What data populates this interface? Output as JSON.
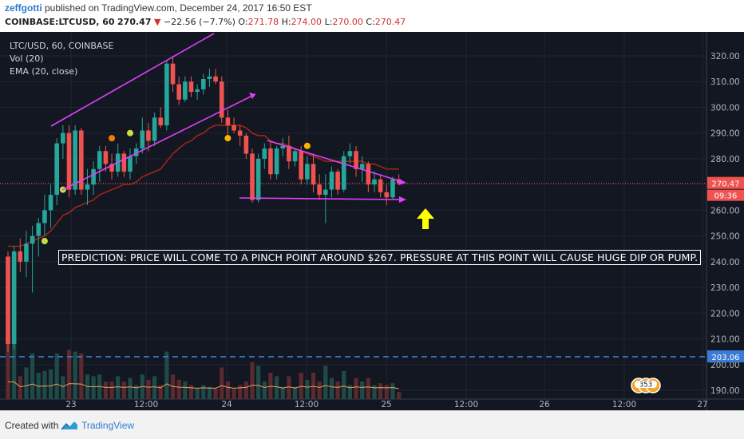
{
  "header": {
    "author": "zeffgotti",
    "published_text": " published on TradingView.com, December 24, 2017 16:50 EST",
    "symbol": "COINBASE:LTCUSD, 60",
    "last": "270.47",
    "change": "−22.56 (−7.7%)",
    "o_label": "O:",
    "o_val": "271.78",
    "h_label": "H:",
    "h_val": "274.00",
    "l_label": "L:",
    "l_val": "270.00",
    "c_label": "C:",
    "c_val": "270.47"
  },
  "legend": {
    "line1": "LTC/USD, 60, COINBASE",
    "line2": "Vol (20)",
    "line3": "EMA (20, close)"
  },
  "annotation": {
    "prediction": "PREDICTION: PRICE WILL COME TO A PINCH POINT AROUND $267. PRESSURE AT THIS POINT WILL CAUSE HUGE DIP OR PUMP."
  },
  "footer": {
    "created_with": "Created with",
    "brand": "TradingView"
  },
  "badge": {
    "count": "353"
  },
  "colors": {
    "background": "#131722",
    "up": "#26a69a",
    "down": "#ef5350",
    "ema": "#a52714",
    "drawing": "#e040fb",
    "marker": "#c6e03d",
    "arrow": "#ffff00",
    "hline": "#3a7bd5"
  },
  "chart_data": {
    "type": "candlestick",
    "symbol": "LTC/USD",
    "interval": "60",
    "exchange": "COINBASE",
    "y_ticks": [
      190,
      200,
      210,
      220,
      230,
      240,
      250,
      260,
      270,
      280,
      290,
      300,
      310,
      320
    ],
    "y_tick_labels": [
      "190.00",
      "200.00",
      "210.00",
      "220.00",
      "230.00",
      "240.00",
      "250.00",
      "260.00",
      "270.00",
      "280.00",
      "290.00",
      "300.00",
      "310.00",
      "320.00"
    ],
    "ylim": [
      187,
      327
    ],
    "x_tick_labels": [
      "23",
      "12:00",
      "24",
      "12:00",
      "25",
      "12:00",
      "26",
      "12:00",
      "27"
    ],
    "candles": [
      {
        "o": 242,
        "h": 244,
        "l": 205,
        "c": 208
      },
      {
        "o": 208,
        "h": 246,
        "l": 206,
        "c": 244
      },
      {
        "o": 244,
        "h": 249,
        "l": 236,
        "c": 240
      },
      {
        "o": 240,
        "h": 252,
        "l": 234,
        "c": 247
      },
      {
        "o": 247,
        "h": 254,
        "l": 228,
        "c": 250
      },
      {
        "o": 250,
        "h": 257,
        "l": 242,
        "c": 255
      },
      {
        "o": 255,
        "h": 266,
        "l": 250,
        "c": 260
      },
      {
        "o": 260,
        "h": 270,
        "l": 253,
        "c": 266
      },
      {
        "o": 266,
        "h": 288,
        "l": 262,
        "c": 286
      },
      {
        "o": 286,
        "h": 293,
        "l": 280,
        "c": 290
      },
      {
        "o": 290,
        "h": 293,
        "l": 265,
        "c": 268
      },
      {
        "o": 268,
        "h": 293,
        "l": 266,
        "c": 291
      },
      {
        "o": 291,
        "h": 292,
        "l": 266,
        "c": 268
      },
      {
        "o": 268,
        "h": 276,
        "l": 262,
        "c": 270
      },
      {
        "o": 270,
        "h": 279,
        "l": 266,
        "c": 276
      },
      {
        "o": 276,
        "h": 285,
        "l": 271,
        "c": 283
      },
      {
        "o": 283,
        "h": 285,
        "l": 275,
        "c": 278
      },
      {
        "o": 278,
        "h": 282,
        "l": 272,
        "c": 275
      },
      {
        "o": 275,
        "h": 286,
        "l": 273,
        "c": 282
      },
      {
        "o": 282,
        "h": 283,
        "l": 273,
        "c": 275
      },
      {
        "o": 275,
        "h": 284,
        "l": 272,
        "c": 281
      },
      {
        "o": 281,
        "h": 286,
        "l": 278,
        "c": 284
      },
      {
        "o": 284,
        "h": 296,
        "l": 282,
        "c": 291
      },
      {
        "o": 291,
        "h": 294,
        "l": 283,
        "c": 287
      },
      {
        "o": 287,
        "h": 298,
        "l": 285,
        "c": 296
      },
      {
        "o": 296,
        "h": 300,
        "l": 292,
        "c": 293
      },
      {
        "o": 293,
        "h": 318,
        "l": 291,
        "c": 317
      },
      {
        "o": 317,
        "h": 320,
        "l": 306,
        "c": 309
      },
      {
        "o": 309,
        "h": 312,
        "l": 301,
        "c": 303
      },
      {
        "o": 303,
        "h": 312,
        "l": 302,
        "c": 310
      },
      {
        "o": 310,
        "h": 312,
        "l": 304,
        "c": 306
      },
      {
        "o": 306,
        "h": 309,
        "l": 303,
        "c": 307
      },
      {
        "o": 307,
        "h": 313,
        "l": 305,
        "c": 311
      },
      {
        "o": 311,
        "h": 315,
        "l": 308,
        "c": 312
      },
      {
        "o": 312,
        "h": 315,
        "l": 309,
        "c": 310
      },
      {
        "o": 310,
        "h": 312,
        "l": 294,
        "c": 296
      },
      {
        "o": 296,
        "h": 299,
        "l": 289,
        "c": 293
      },
      {
        "o": 293,
        "h": 296,
        "l": 290,
        "c": 291
      },
      {
        "o": 291,
        "h": 293,
        "l": 285,
        "c": 289
      },
      {
        "o": 289,
        "h": 290,
        "l": 280,
        "c": 282
      },
      {
        "o": 282,
        "h": 284,
        "l": 263,
        "c": 264
      },
      {
        "o": 264,
        "h": 282,
        "l": 263,
        "c": 280
      },
      {
        "o": 280,
        "h": 286,
        "l": 276,
        "c": 284
      },
      {
        "o": 284,
        "h": 287,
        "l": 272,
        "c": 274
      },
      {
        "o": 274,
        "h": 285,
        "l": 272,
        "c": 284
      },
      {
        "o": 284,
        "h": 288,
        "l": 281,
        "c": 285
      },
      {
        "o": 285,
        "h": 289,
        "l": 276,
        "c": 279
      },
      {
        "o": 279,
        "h": 284,
        "l": 277,
        "c": 283
      },
      {
        "o": 283,
        "h": 285,
        "l": 270,
        "c": 272
      },
      {
        "o": 272,
        "h": 281,
        "l": 270,
        "c": 278
      },
      {
        "o": 278,
        "h": 282,
        "l": 267,
        "c": 270
      },
      {
        "o": 270,
        "h": 274,
        "l": 264,
        "c": 266
      },
      {
        "o": 266,
        "h": 274,
        "l": 255,
        "c": 268
      },
      {
        "o": 268,
        "h": 277,
        "l": 265,
        "c": 275
      },
      {
        "o": 275,
        "h": 276,
        "l": 266,
        "c": 268
      },
      {
        "o": 268,
        "h": 283,
        "l": 267,
        "c": 281
      },
      {
        "o": 281,
        "h": 286,
        "l": 278,
        "c": 283
      },
      {
        "o": 283,
        "h": 285,
        "l": 273,
        "c": 276
      },
      {
        "o": 276,
        "h": 281,
        "l": 271,
        "c": 278
      },
      {
        "o": 278,
        "h": 279,
        "l": 267,
        "c": 270
      },
      {
        "o": 270,
        "h": 275,
        "l": 267,
        "c": 272
      },
      {
        "o": 272,
        "h": 274,
        "l": 265,
        "c": 267
      },
      {
        "o": 267,
        "h": 270,
        "l": 262,
        "c": 265
      },
      {
        "o": 265,
        "h": 273,
        "l": 264,
        "c": 272
      },
      {
        "o": 272,
        "h": 274,
        "l": 270,
        "c": 270.47
      }
    ],
    "ema": [
      246,
      246,
      246,
      247,
      248,
      249,
      250,
      252,
      255,
      258,
      259,
      261,
      262,
      263,
      264,
      266,
      267,
      268,
      269,
      270,
      270,
      271,
      273,
      274,
      275,
      276,
      279,
      282,
      284,
      286,
      287,
      289,
      290,
      292,
      293,
      293,
      293,
      293,
      293,
      292,
      290,
      289,
      289,
      287,
      286,
      286,
      285,
      284,
      283,
      282,
      281,
      280,
      279,
      279,
      279,
      279,
      279,
      279,
      279,
      278,
      278,
      277,
      276,
      276,
      276
    ],
    "markers": [
      {
        "index": 6,
        "price": 248,
        "color": "#c6e03d"
      },
      {
        "index": 9,
        "price": 268,
        "color": "#c6e03d"
      },
      {
        "index": 17,
        "price": 288,
        "color": "#f57c00"
      },
      {
        "index": 20,
        "price": 290,
        "color": "#c6e03d"
      },
      {
        "index": 36,
        "price": 288,
        "color": "#f7b500"
      },
      {
        "index": 49,
        "price": 285,
        "color": "#f7b500"
      }
    ],
    "last_price_label": "270.47",
    "countdown_label": "09:36",
    "hline_price": 203.06,
    "hline_label": "203.06",
    "current_price_line": 270.47
  }
}
